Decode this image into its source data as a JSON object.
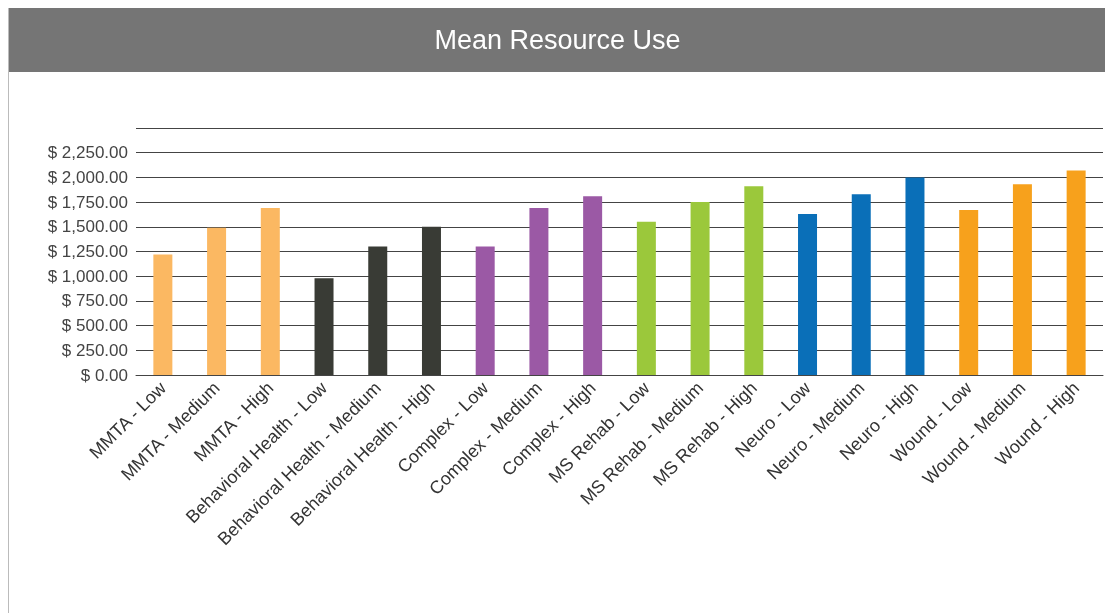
{
  "chart_data": {
    "type": "bar",
    "title": "Mean Resource Use",
    "categories": [
      "MMTA - Low",
      "MMTA - Medium",
      "MMTA - High",
      "Behavioral Health - Low",
      "Behavioral Health - Medium",
      "Behavioral Health - High",
      "Complex - Low",
      "Complex - Medium",
      "Complex - High",
      "MS Rehab - Low",
      "MS Rehab - Medium",
      "MS Rehab - High",
      "Neuro - Low",
      "Neuro - Medium",
      "Neuro - High",
      "Wound - Low",
      "Wound - Medium",
      "Wound - High"
    ],
    "values": [
      1220,
      1490,
      1690,
      980,
      1300,
      1500,
      1300,
      1690,
      1810,
      1550,
      1750,
      1910,
      1630,
      1830,
      2000,
      1670,
      1930,
      2070
    ],
    "colors": [
      "#fbb862",
      "#fbb862",
      "#fbb862",
      "#393b35",
      "#393b35",
      "#393b35",
      "#9b59a5",
      "#9b59a5",
      "#9b59a5",
      "#9bc83b",
      "#9bc83b",
      "#9bc83b",
      "#0a6fb8",
      "#0a6fb8",
      "#0a6fb8",
      "#f7a11c",
      "#f7a11c",
      "#f7a11c"
    ],
    "ylim": [
      0,
      2500
    ],
    "yticks": [
      {
        "value": 0,
        "label": "$ 0.00"
      },
      {
        "value": 250,
        "label": "$ 250.00"
      },
      {
        "value": 500,
        "label": "$ 500.00"
      },
      {
        "value": 750,
        "label": "$ 750.00"
      },
      {
        "value": 1000,
        "label": "$ 1,000.00"
      },
      {
        "value": 1250,
        "label": "$ 1,250.00"
      },
      {
        "value": 1500,
        "label": "$ 1,500.00"
      },
      {
        "value": 1750,
        "label": "$ 1,750.00"
      },
      {
        "value": 2000,
        "label": "$ 2,000.00"
      },
      {
        "value": 2250,
        "label": "$ 2,250.00"
      },
      {
        "value": 2500,
        "label": null
      }
    ],
    "grid": "y"
  }
}
